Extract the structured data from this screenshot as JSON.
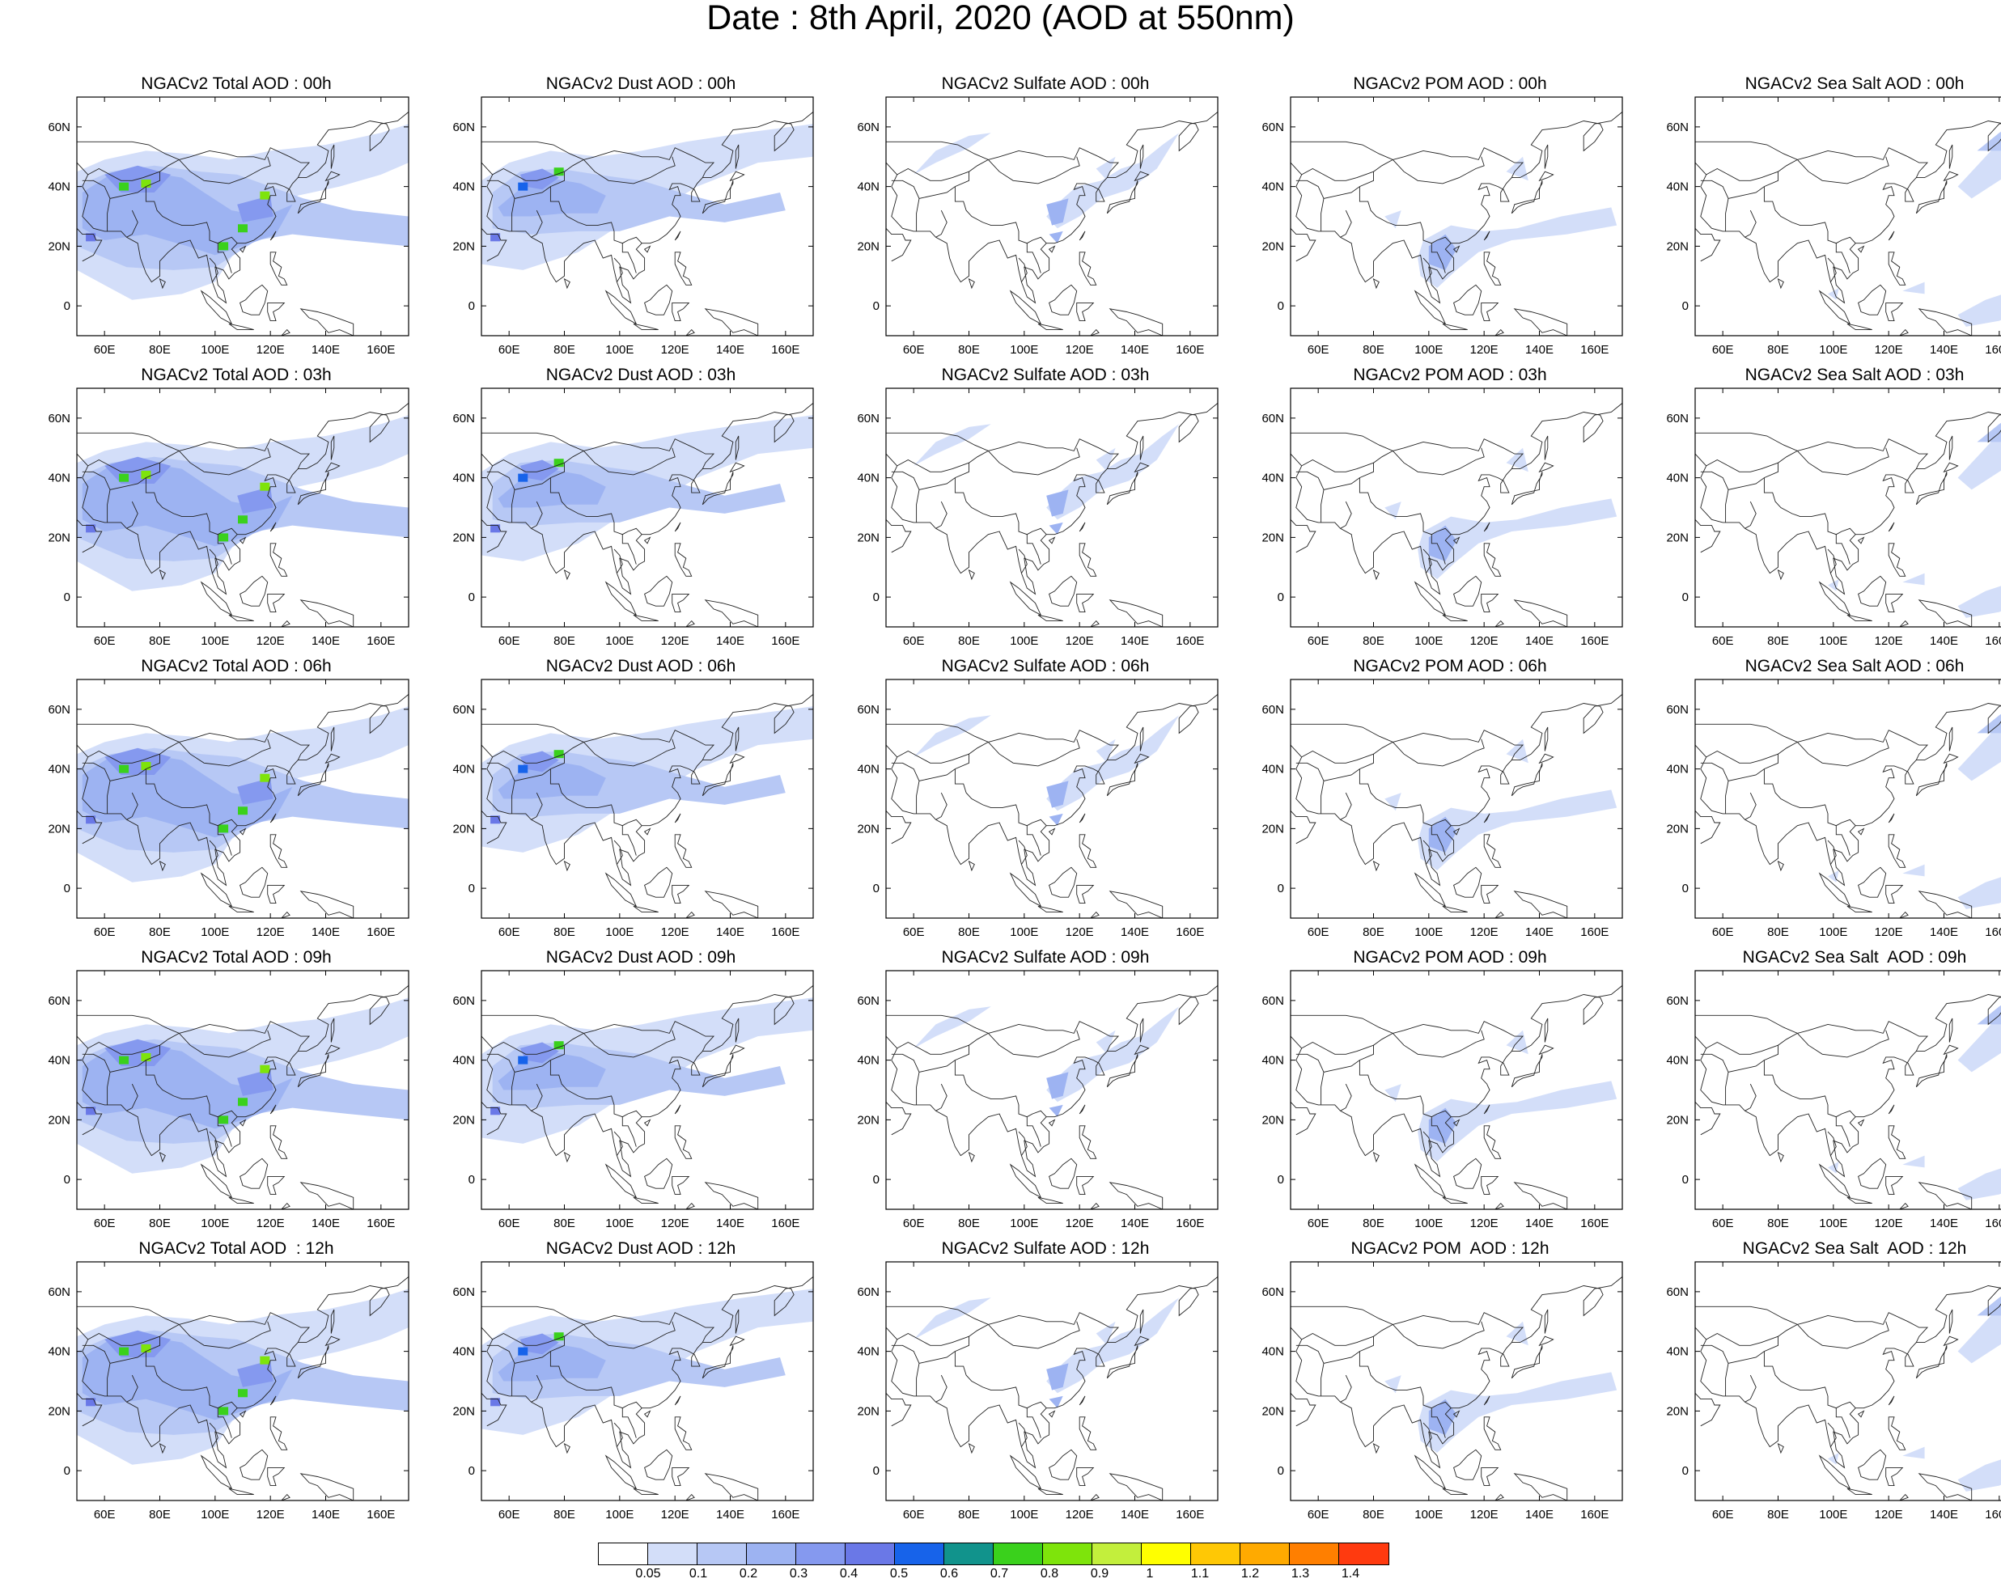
{
  "title": "Date : 8th April, 2020 (AOD at 550nm)",
  "x_tick_labels": [
    "60E",
    "80E",
    "100E",
    "120E",
    "140E",
    "160E"
  ],
  "y_tick_labels": [
    "60N",
    "40N",
    "20N",
    "0"
  ],
  "panels": [
    {
      "title": "NGACv2 Total AOD : 00h",
      "kind": "total"
    },
    {
      "title": "NGACv2 Dust AOD : 00h",
      "kind": "dust"
    },
    {
      "title": "NGACv2 Sulfate AOD : 00h",
      "kind": "sulfate"
    },
    {
      "title": "NGACv2 POM AOD : 00h",
      "kind": "pom"
    },
    {
      "title": "NGACv2 Sea Salt AOD : 00h",
      "kind": "seasalt"
    },
    {
      "title": "NGACv2 Total AOD : 03h",
      "kind": "total"
    },
    {
      "title": "NGACv2 Dust AOD : 03h",
      "kind": "dust"
    },
    {
      "title": "NGACv2 Sulfate AOD : 03h",
      "kind": "sulfate"
    },
    {
      "title": "NGACv2 POM AOD : 03h",
      "kind": "pom"
    },
    {
      "title": "NGACv2 Sea Salt AOD : 03h",
      "kind": "seasalt"
    },
    {
      "title": "NGACv2 Total AOD : 06h",
      "kind": "total"
    },
    {
      "title": "NGACv2 Dust AOD : 06h",
      "kind": "dust"
    },
    {
      "title": "NGACv2 Sulfate AOD : 06h",
      "kind": "sulfate"
    },
    {
      "title": "NGACv2 POM AOD : 06h",
      "kind": "pom"
    },
    {
      "title": "NGACv2 Sea Salt AOD : 06h",
      "kind": "seasalt"
    },
    {
      "title": "NGACv2 Total AOD : 09h",
      "kind": "total"
    },
    {
      "title": "NGACv2 Dust AOD : 09h",
      "kind": "dust"
    },
    {
      "title": "NGACv2 Sulfate AOD : 09h",
      "kind": "sulfate"
    },
    {
      "title": "NGACv2 POM AOD : 09h",
      "kind": "pom"
    },
    {
      "title": "NGACv2 Sea Salt  AOD : 09h",
      "kind": "seasalt"
    },
    {
      "title": "NGACv2 Total AOD  : 12h",
      "kind": "total"
    },
    {
      "title": "NGACv2 Dust AOD : 12h",
      "kind": "dust"
    },
    {
      "title": "NGACv2 Sulfate AOD : 12h",
      "kind": "sulfate"
    },
    {
      "title": "NGACv2 POM  AOD : 12h",
      "kind": "pom"
    },
    {
      "title": "NGACv2 Sea Salt  AOD : 12h",
      "kind": "seasalt"
    }
  ],
  "colorbar": {
    "colors": [
      "#ffffff",
      "#d3def9",
      "#b7c8f5",
      "#9db3f2",
      "#8599ef",
      "#6a78e7",
      "#1763ea",
      "#11938c",
      "#3ad11c",
      "#7ee40b",
      "#c3ef3c",
      "#ffff00",
      "#ffc805",
      "#ffaa00",
      "#ff7f00",
      "#ff3a0f"
    ],
    "labels": [
      "0.05",
      "0.1",
      "0.2",
      "0.3",
      "0.4",
      "0.5",
      "0.6",
      "0.7",
      "0.8",
      "0.9",
      "1",
      "1.1",
      "1.2",
      "1.3",
      "1.4"
    ]
  }
}
